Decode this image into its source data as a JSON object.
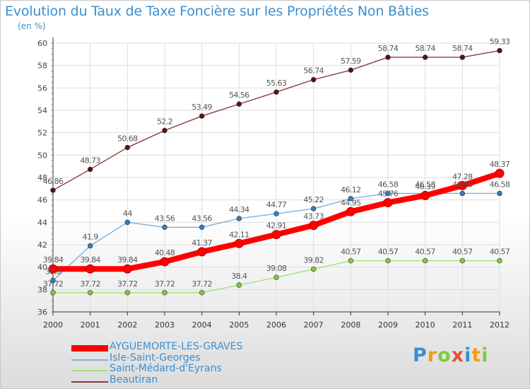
{
  "header": {
    "title": "Evolution du Taux de Taxe Foncière sur les Propriétés Non Bâties",
    "unit": "(en %)"
  },
  "chart_data": {
    "type": "line",
    "x": [
      "2000",
      "2001",
      "2002",
      "2003",
      "2004",
      "2005",
      "2006",
      "2007",
      "2008",
      "2009",
      "2010",
      "2011",
      "2012"
    ],
    "ylim": [
      36,
      60
    ],
    "yticks": [
      36,
      38,
      40,
      42,
      44,
      46,
      48,
      50,
      52,
      54,
      56,
      58,
      60
    ],
    "grid": true,
    "legend_position": "bottom-left",
    "series": [
      {
        "name": "AYGUEMORTE-LES-GRAVES",
        "color": "#ff0000",
        "point_color": "#ff0000",
        "width": "thick",
        "values": [
          39.84,
          39.84,
          39.84,
          40.48,
          41.37,
          42.11,
          42.91,
          43.73,
          44.95,
          45.76,
          46.39,
          47.28,
          48.37
        ]
      },
      {
        "name": "Isle-Saint-Georges",
        "color": "#7fb0d8",
        "point_color": "#2f7fc0",
        "width": "thin",
        "values": [
          38.8,
          41.9,
          44,
          43.56,
          43.56,
          44.34,
          44.77,
          45.22,
          46.12,
          46.58,
          46.58,
          46.58,
          46.58
        ]
      },
      {
        "name": "Saint-Médard-d'Eyrans",
        "color": "#a8e07a",
        "point_color": "#7ecb3a",
        "width": "thin",
        "values": [
          37.72,
          37.72,
          37.72,
          37.72,
          37.72,
          38.4,
          39.08,
          39.82,
          40.57,
          40.57,
          40.57,
          40.57,
          40.57
        ]
      },
      {
        "name": "Beautiran",
        "color": "#8a3a3a",
        "point_color": "#5a1010",
        "width": "thin",
        "values": [
          46.86,
          48.73,
          50.68,
          52.2,
          53.49,
          54.56,
          55.63,
          56.74,
          57.59,
          58.74,
          58.74,
          58.74,
          59.33
        ]
      }
    ],
    "data_labels": [
      [
        "39.84",
        "39.84",
        "39.84",
        "40.48",
        "41.37",
        "42.11",
        "42.91",
        "43.73",
        "44.95",
        "45.76",
        "46.39",
        "47.28",
        "48.37"
      ],
      [
        "38.8",
        "41.9",
        "44",
        "43.56",
        "43.56",
        "44.34",
        "44.77",
        "45.22",
        "46.12",
        "46.58",
        "46.58",
        "46.58",
        "46.58"
      ],
      [
        "37.72",
        "37.72",
        "37.72",
        "37.72",
        "37.72",
        "38.4",
        "39.08",
        "39.82",
        "40.57",
        "40.57",
        "40.57",
        "40.57",
        "40.57"
      ],
      [
        "46.86",
        "48.73",
        "50.68",
        "52.2",
        "53.49",
        "54.56",
        "55.63",
        "56.74",
        "57.59",
        "58.74",
        "58.74",
        "58.74",
        "59.33"
      ]
    ]
  },
  "logo": {
    "letters": [
      "P",
      "r",
      "o",
      "x",
      "i",
      "t",
      "i"
    ],
    "colors": [
      "#3b8fcf",
      "#f39c12",
      "#7ecb3a",
      "#e74c3c",
      "#3b8fcf",
      "#f39c12",
      "#7ecb3a"
    ]
  }
}
